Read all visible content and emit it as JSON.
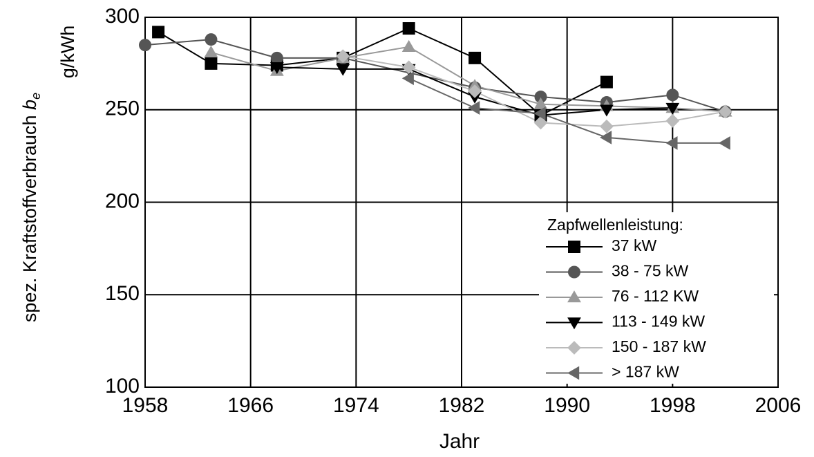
{
  "chart_data": {
    "type": "line",
    "ylabel": "spez. Kraftstoffverbrauch",
    "ylabel_symbol": "b",
    "ylabel_subscript": "e",
    "yunit": "g/kWh",
    "xlabel": "Jahr",
    "legend_title": "Zapfwellenleistung:",
    "legend": "lower right",
    "grid": true,
    "xlim": [
      1958,
      2006
    ],
    "xticks": [
      1958,
      1966,
      1974,
      1982,
      1990,
      1998,
      2006
    ],
    "ylim": [
      100,
      300
    ],
    "yticks": [
      100,
      150,
      200,
      250,
      300
    ],
    "series": [
      {
        "name": "37 kW",
        "color": "#000000",
        "marker": "square",
        "x": [
          1959,
          1963,
          1968,
          1973,
          1978,
          1983,
          1988,
          1993
        ],
        "values": [
          292,
          275,
          274,
          278,
          294,
          278,
          247,
          265
        ]
      },
      {
        "name": "38 - 75 kW",
        "color": "#555555",
        "marker": "circle",
        "x": [
          1958,
          1963,
          1968,
          1973,
          1983,
          1988,
          1993,
          1998,
          2002
        ],
        "values": [
          285,
          288,
          278,
          278,
          262,
          257,
          254,
          258,
          249
        ]
      },
      {
        "name": "76 - 112 KW",
        "color": "#999999",
        "marker": "triangle-up",
        "x": [
          1963,
          1968,
          1973,
          1978,
          1983,
          1988,
          1993,
          1998,
          2002
        ],
        "values": [
          281,
          271,
          278,
          284,
          263,
          253,
          252,
          251,
          249
        ]
      },
      {
        "name": "113 - 149 kW",
        "color": "#000000",
        "marker": "triangle-down",
        "x": [
          1968,
          1973,
          1978,
          1983,
          1988,
          1993,
          1998
        ],
        "values": [
          273,
          272,
          272,
          257,
          247,
          250,
          251
        ]
      },
      {
        "name": "150 - 187 kW",
        "color": "#bbbbbb",
        "marker": "diamond",
        "x": [
          1973,
          1978,
          1983,
          1988,
          1993,
          1998,
          2002
        ],
        "values": [
          279,
          273,
          260,
          243,
          241,
          244,
          249
        ]
      },
      {
        "name": "> 187 kW",
        "color": "#666666",
        "marker": "triangle-left",
        "x": [
          1978,
          1983,
          1988,
          1993,
          1998,
          2002
        ],
        "values": [
          267,
          251,
          248,
          235,
          232,
          232
        ]
      }
    ]
  }
}
